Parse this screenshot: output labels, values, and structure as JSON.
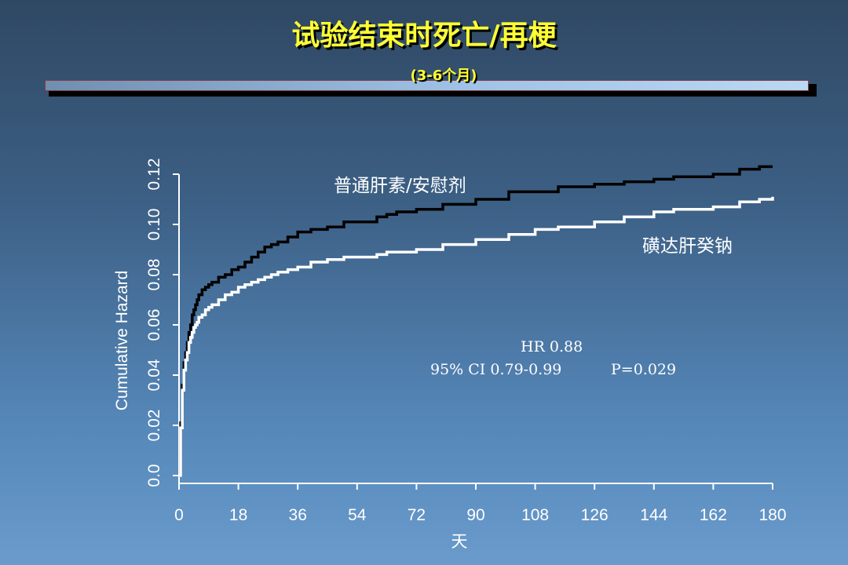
{
  "slide": {
    "title": "试验结束时死亡/再梗",
    "subtitle": "(3-6个月)"
  },
  "chart_data": {
    "type": "line",
    "xlabel": "天",
    "ylabel": "Cumulative Hazard",
    "xlim": [
      0,
      180
    ],
    "ylim": [
      0,
      0.12
    ],
    "xticks": [
      "0",
      "18",
      "36",
      "54",
      "72",
      "90",
      "108",
      "126",
      "144",
      "162",
      "180"
    ],
    "yticks": [
      "0.0",
      "0.02",
      "0.04",
      "0.06",
      "0.08",
      "0.10",
      "0.12"
    ],
    "series": [
      {
        "name": "普通肝素/安慰剂",
        "color": "#000000",
        "x": [
          0,
          0.5,
          1,
          1.5,
          2,
          2.5,
          3,
          3.5,
          4,
          4.5,
          5,
          5.5,
          6,
          7,
          8,
          9,
          10,
          12,
          14,
          16,
          18,
          20,
          22,
          24,
          26,
          28,
          30,
          33,
          36,
          40,
          45,
          50,
          54,
          60,
          63,
          66,
          72,
          80,
          90,
          100,
          108,
          115,
          126,
          135,
          144,
          150,
          162,
          170,
          176,
          180
        ],
        "y": [
          0,
          0.021,
          0.036,
          0.045,
          0.049,
          0.053,
          0.057,
          0.06,
          0.064,
          0.066,
          0.068,
          0.07,
          0.072,
          0.074,
          0.075,
          0.076,
          0.077,
          0.079,
          0.08,
          0.082,
          0.083,
          0.085,
          0.087,
          0.089,
          0.091,
          0.092,
          0.093,
          0.095,
          0.097,
          0.098,
          0.099,
          0.101,
          0.101,
          0.103,
          0.104,
          0.105,
          0.106,
          0.108,
          0.11,
          0.113,
          0.113,
          0.115,
          0.116,
          0.117,
          0.118,
          0.119,
          0.12,
          0.122,
          0.123,
          0.123
        ]
      },
      {
        "name": "磺达肝癸钠",
        "color": "#ffffff",
        "x": [
          0,
          0.5,
          1,
          1.5,
          2,
          2.5,
          3,
          3.5,
          4,
          4.5,
          5,
          5.5,
          6,
          7,
          8,
          9,
          10,
          12,
          14,
          16,
          18,
          20,
          22,
          24,
          26,
          28,
          30,
          33,
          36,
          40,
          45,
          50,
          54,
          60,
          63,
          66,
          72,
          80,
          90,
          100,
          108,
          115,
          126,
          135,
          144,
          150,
          162,
          170,
          176,
          180
        ],
        "y": [
          0,
          0.019,
          0.034,
          0.042,
          0.046,
          0.049,
          0.053,
          0.055,
          0.057,
          0.059,
          0.06,
          0.061,
          0.063,
          0.064,
          0.066,
          0.067,
          0.068,
          0.07,
          0.072,
          0.073,
          0.075,
          0.076,
          0.077,
          0.078,
          0.079,
          0.08,
          0.081,
          0.082,
          0.083,
          0.085,
          0.086,
          0.087,
          0.087,
          0.088,
          0.089,
          0.089,
          0.09,
          0.092,
          0.094,
          0.096,
          0.098,
          0.099,
          0.101,
          0.103,
          0.105,
          0.106,
          0.107,
          0.109,
          0.11,
          0.111
        ]
      }
    ],
    "annotations": [
      "HR 0.88",
      "95% CI 0.79-0.99",
      "P=0.029"
    ]
  }
}
